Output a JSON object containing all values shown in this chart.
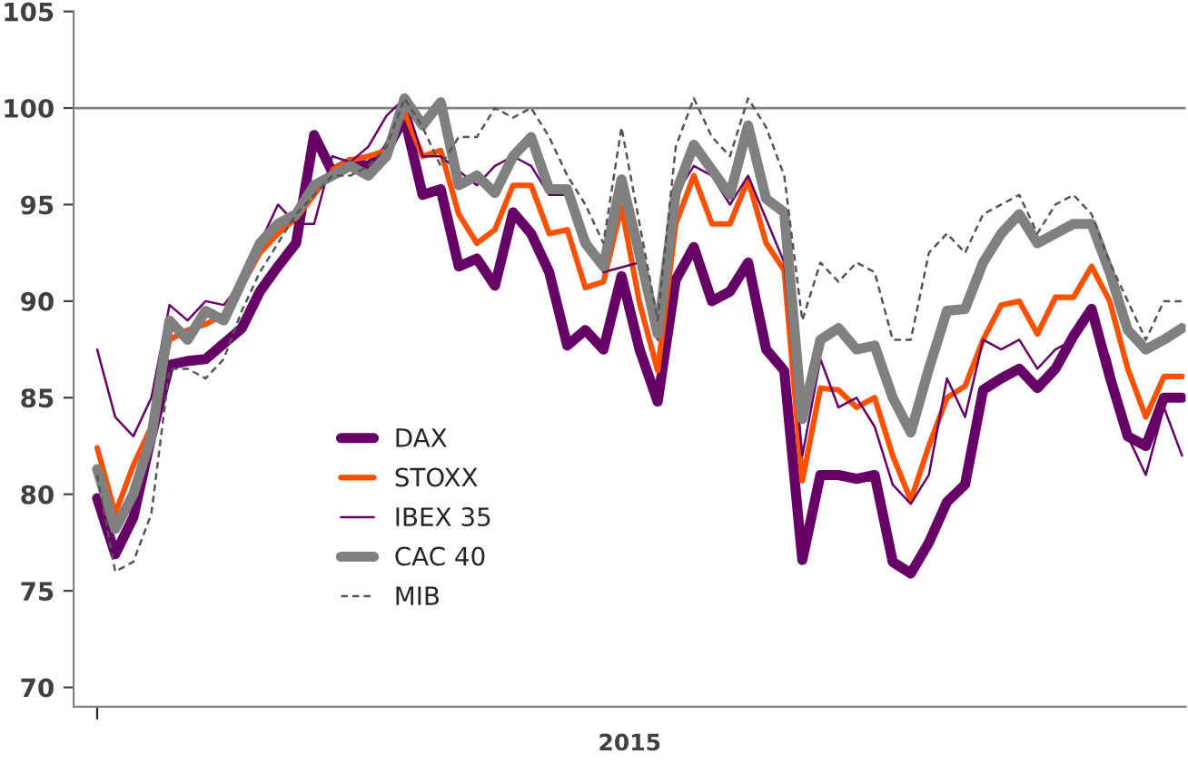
{
  "chart_data": {
    "type": "line",
    "xlabel": "2015",
    "categories": [
      null,
      null,
      null,
      null,
      null,
      null,
      null,
      null,
      null,
      null,
      null,
      null,
      null,
      null,
      null,
      null,
      null,
      null,
      null,
      null,
      null,
      null,
      null,
      null,
      null,
      null,
      null,
      null,
      null,
      null,
      null,
      null,
      null,
      null,
      null,
      null,
      null,
      null,
      null,
      null,
      null,
      null,
      null,
      null,
      null,
      null,
      null,
      null,
      null,
      null,
      null,
      null,
      null,
      null,
      null,
      null,
      null,
      null,
      null,
      null,
      null
    ],
    "ylim": [
      69,
      105
    ],
    "yticks": [
      70,
      75,
      80,
      85,
      90,
      95,
      100,
      105
    ],
    "grid": false,
    "legend": "left",
    "marker": "none",
    "ref_lines": [
      {
        "axis": "y",
        "value": 100,
        "color": "#808080",
        "line_style": "solid"
      }
    ],
    "series": [
      {
        "name": "DAX",
        "color": "#660066",
        "line_style": "solid",
        "values": [
          79.8,
          76.9,
          78.8,
          83,
          86.7,
          86.9,
          87.0,
          87.8,
          88.6,
          90.5,
          91.8,
          93.0,
          98.6,
          96.7,
          97.2,
          97.0,
          97.8,
          99.5,
          95.5,
          95.8,
          91.8,
          92.2,
          90.8,
          94.6,
          93.5,
          91.5,
          87.7,
          88.5,
          87.5,
          91.3,
          87.5,
          84.8,
          91.1,
          92.8,
          90.0,
          90.5,
          92.0,
          87.5,
          86.4,
          76.6,
          81.0,
          81.0,
          80.8,
          81.0,
          76.5,
          75.9,
          77.5,
          79.6,
          80.5,
          85.4,
          86.0,
          86.5,
          85.5,
          86.5,
          88.2,
          89.6,
          86.1,
          83.0,
          82.5,
          85.0,
          85.0
        ]
      },
      {
        "name": "STOXX",
        "color": "#ff5000",
        "line_style": "solid",
        "values": [
          82.4,
          79.0,
          81.5,
          83.5,
          88.0,
          88.5,
          88.8,
          89.3,
          90.8,
          92.5,
          93.5,
          94.3,
          95.5,
          96.8,
          97.3,
          97.5,
          97.8,
          99.8,
          97.5,
          97.8,
          94.5,
          93.0,
          93.7,
          96.0,
          96.0,
          93.5,
          93.7,
          90.7,
          91.0,
          94.9,
          89.9,
          86.4,
          94.0,
          96.5,
          94.0,
          94.0,
          96.3,
          93.0,
          91.6,
          80.7,
          85.5,
          85.4,
          84.5,
          85.0,
          82.0,
          79.7,
          82.5,
          85.0,
          85.6,
          88.0,
          89.8,
          90.0,
          88.3,
          90.2,
          90.2,
          91.8,
          90.0,
          86.5,
          84.0,
          86.1,
          86.1
        ]
      },
      {
        "name": "IBEX 35",
        "color": "#660066",
        "line_style": "solid",
        "values": [
          87.5,
          84.0,
          83.0,
          85.0,
          89.8,
          89.0,
          90.0,
          89.8,
          91.0,
          93.0,
          95.0,
          94.0,
          94.0,
          97.5,
          97.2,
          98.0,
          99.6,
          100.5,
          97.5,
          97.5,
          null,
          96.0,
          97.0,
          97.5,
          97.0,
          95.5,
          95.5,
          null,
          91.5,
          null,
          92.0,
          88.0,
          95.5,
          97.0,
          96.5,
          95.0,
          96.5,
          null,
          92.0,
          82.0,
          87.0,
          84.5,
          85.0,
          83.5,
          80.5,
          79.5,
          81.0,
          86.0,
          84.0,
          88.0,
          87.5,
          88.0,
          86.5,
          87.5,
          88.0,
          89.5,
          87.0,
          83.0,
          81.0,
          84.5,
          82.0
        ]
      },
      {
        "name": "CAC 40",
        "color": "#808080",
        "line_style": "solid",
        "values": [
          81.3,
          78.2,
          80.0,
          83.0,
          89.0,
          88.0,
          89.5,
          89.0,
          91.0,
          93.0,
          94.0,
          94.5,
          96.0,
          96.5,
          97.0,
          96.5,
          97.5,
          100.5,
          99.1,
          100.3,
          96.0,
          96.5,
          95.6,
          97.5,
          98.5,
          95.8,
          95.8,
          93.0,
          91.8,
          96.3,
          92.4,
          88.3,
          95.6,
          98.1,
          96.8,
          95.5,
          99.1,
          95.3,
          94.6,
          83.9,
          88.0,
          88.6,
          87.5,
          87.7,
          85.0,
          83.2,
          86.5,
          89.5,
          89.6,
          92.0,
          93.5,
          94.5,
          93.0,
          93.5,
          94.0,
          94.0,
          91.5,
          88.5,
          87.5,
          88.0,
          88.6
        ]
      },
      {
        "name": "MIB",
        "color": "#555555",
        "line_style": "dashed",
        "values": [
          81.0,
          76.0,
          76.5,
          79.0,
          86.5,
          86.5,
          86.0,
          87.0,
          89.5,
          91.5,
          93.0,
          94.5,
          95.5,
          96.5,
          96.5,
          97.0,
          98.0,
          100.5,
          99.0,
          97.0,
          98.5,
          98.5,
          100.0,
          99.5,
          100.0,
          98.5,
          96.5,
          95.0,
          93.0,
          99.0,
          94.0,
          89.0,
          98.0,
          100.5,
          98.5,
          97.5,
          100.5,
          99.0,
          96.5,
          89.0,
          92.0,
          91.0,
          92.0,
          91.5,
          88.0,
          88.0,
          92.5,
          93.5,
          92.5,
          94.5,
          95.0,
          95.5,
          93.5,
          95.0,
          95.5,
          94.5,
          92.0,
          90.0,
          88.0,
          90.0,
          90.0
        ]
      }
    ]
  }
}
